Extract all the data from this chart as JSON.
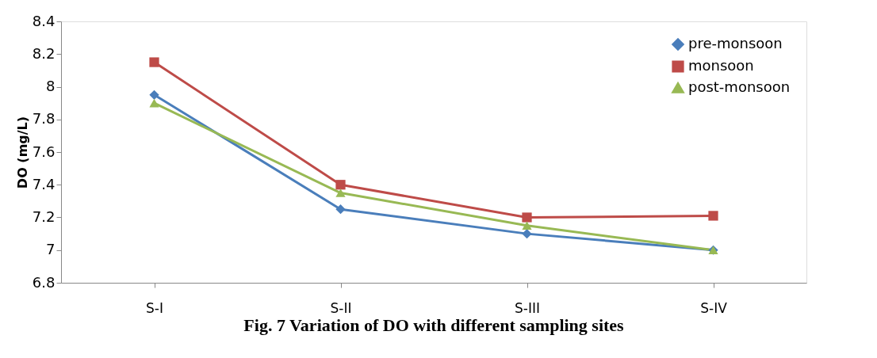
{
  "chart_data": {
    "type": "line",
    "title": "Fig. 7 Variation of DO with different sampling sites",
    "ylabel": "DO (mg/L)",
    "categories": [
      "S-I",
      "S-II",
      "S-III",
      "S-IV"
    ],
    "series": [
      {
        "name": "pre-monsoon",
        "color": "#4a7ebb",
        "marker": "diamond",
        "values": [
          7.95,
          7.25,
          7.1,
          7.0
        ]
      },
      {
        "name": "monsoon",
        "color": "#be4b48",
        "marker": "square",
        "values": [
          8.15,
          7.4,
          7.2,
          7.21
        ]
      },
      {
        "name": "post-monsoon",
        "color": "#98b954",
        "marker": "triangle",
        "values": [
          7.9,
          7.35,
          7.15,
          7.0
        ]
      }
    ],
    "ylim": [
      6.8,
      8.4
    ],
    "yticks": [
      6.8,
      7,
      7.2,
      7.4,
      7.6,
      7.8,
      8,
      8.2,
      8.4
    ],
    "grid": false,
    "legend": "top right",
    "line_style": "solid"
  }
}
